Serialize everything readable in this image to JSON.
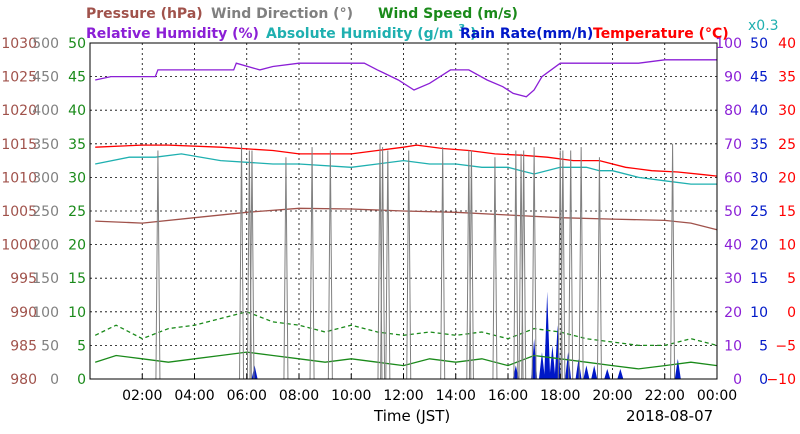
{
  "chart_data": {
    "type": "line",
    "date": "2018-08-07",
    "xlabel": "Time (JST)",
    "x_ticks": [
      "02:00",
      "04:00",
      "06:00",
      "08:00",
      "10:00",
      "12:00",
      "14:00",
      "16:00",
      "18:00",
      "20:00",
      "22:00",
      "00:00"
    ],
    "x_range_hours": [
      0,
      24
    ],
    "grid": true,
    "legend_row1": [
      {
        "name": "Pressure (hPa)",
        "color": "#a0524b"
      },
      {
        "name": "Wind Direction (°)",
        "color": "#808080"
      },
      {
        "name": "Wind Speed (m/s)",
        "color": "#1a8a1a"
      }
    ],
    "legend_row2": [
      {
        "name": "Relative Humidity (%)",
        "color": "#8b1fd6"
      },
      {
        "name_main": "Absolute Humidity (g/m",
        "name_sup": "3",
        "name_end": ")",
        "color": "#1fb0b0"
      },
      {
        "name": "Rain Rate(mm/h)",
        "color": "#0018c8"
      },
      {
        "name": "Temperature (°C)",
        "color": "#ff0000"
      }
    ],
    "multiplier_label": "x0.3",
    "axes": {
      "pressure": {
        "color": "#a0524b",
        "range": [
          980,
          1030
        ],
        "ticks": [
          "980",
          "985",
          "990",
          "995",
          "1000",
          "1005",
          "1010",
          "1015",
          "1020",
          "1025",
          "1030"
        ]
      },
      "wind_direction": {
        "color": "#808080",
        "range": [
          0,
          500
        ],
        "ticks": [
          "0",
          "50",
          "100",
          "150",
          "200",
          "250",
          "300",
          "350",
          "400",
          "450",
          "500"
        ]
      },
      "wind_speed": {
        "color": "#1a8a1a",
        "range": [
          0,
          50
        ],
        "ticks": [
          "0",
          "5",
          "10",
          "15",
          "20",
          "25",
          "30",
          "35",
          "40",
          "45",
          "50"
        ]
      },
      "relative_humidity": {
        "color": "#8b1fd6",
        "range": [
          0,
          100
        ],
        "ticks": [
          "0",
          "10",
          "20",
          "30",
          "40",
          "50",
          "60",
          "70",
          "80",
          "90",
          "100"
        ]
      },
      "rain_rate": {
        "color": "#0018c8",
        "range": [
          0,
          50
        ],
        "ticks": [
          "0",
          "5",
          "10",
          "15",
          "20",
          "25",
          "30",
          "35",
          "40",
          "45",
          "50"
        ]
      },
      "temperature": {
        "color": "#ff0000",
        "range": [
          -10,
          40
        ],
        "ticks": [
          "−10",
          "−5",
          "0",
          "5",
          "10",
          "15",
          "20",
          "25",
          "30",
          "35",
          "40"
        ]
      }
    },
    "series": [
      {
        "name": "Relative Humidity (%)",
        "axis": "relative_humidity",
        "color": "#8b1fd6",
        "x": [
          0.2,
          0.8,
          2.5,
          2.6,
          5.5,
          5.6,
          6.5,
          7.0,
          8.0,
          10.5,
          11.0,
          11.8,
          12.4,
          13.0,
          13.8,
          14.5,
          15.2,
          15.8,
          16.2,
          16.7,
          17.0,
          17.3,
          18.0,
          19.5,
          21.0,
          22.0,
          23.5,
          24.0
        ],
        "y": [
          89,
          90,
          90,
          92,
          92,
          94,
          92,
          93,
          94,
          94,
          92,
          89,
          86,
          88,
          92,
          92,
          89,
          87,
          85,
          84,
          86,
          90,
          94,
          94,
          94,
          95,
          95,
          95
        ]
      },
      {
        "name": "Temperature (°C)",
        "axis": "temperature",
        "color": "#ff0000",
        "x": [
          0.2,
          2,
          3,
          5,
          7,
          8,
          10,
          11,
          12,
          12.5,
          13.5,
          14.5,
          15.5,
          16.5,
          17.5,
          18.5,
          19.5,
          20.5,
          21.5,
          22.5,
          23.5,
          24.0
        ],
        "y": [
          24.5,
          24.8,
          24.8,
          24.5,
          24.0,
          23.5,
          23.5,
          24.0,
          24.5,
          24.8,
          24.3,
          24.0,
          23.5,
          23.3,
          23.0,
          22.5,
          22.5,
          21.5,
          21.0,
          20.8,
          20.4,
          20.2
        ]
      },
      {
        "name": "Absolute Humidity (g/m3) x0.3",
        "axis": "relative_humidity",
        "color": "#1fb0b0",
        "x": [
          0.2,
          1.5,
          2.5,
          3.5,
          5,
          7,
          8,
          10,
          11,
          12,
          13,
          14,
          15,
          16,
          16.5,
          17,
          18,
          19,
          19.5,
          20,
          21,
          22,
          23,
          24
        ],
        "y": [
          64,
          66,
          66,
          67,
          65,
          64,
          64,
          63,
          64,
          65,
          64,
          64,
          63,
          63,
          62,
          61,
          63,
          63,
          62,
          62,
          60,
          59,
          58,
          58
        ]
      },
      {
        "name": "Pressure (hPa)",
        "axis": "pressure",
        "color": "#a0524b",
        "x": [
          0.2,
          2,
          4,
          6,
          8,
          10,
          12,
          14,
          16,
          18,
          20,
          22,
          23,
          24
        ],
        "y": [
          1003.5,
          1003.2,
          1004.0,
          1004.8,
          1005.4,
          1005.3,
          1005.0,
          1004.8,
          1004.4,
          1004.0,
          1003.8,
          1003.6,
          1003.2,
          1002.2
        ]
      },
      {
        "name": "Wind Speed (m/s) mean",
        "axis": "wind_speed",
        "color": "#1a8a1a",
        "x": [
          0.2,
          1,
          2,
          3,
          4,
          5,
          6,
          7,
          8,
          9,
          10,
          11,
          12,
          13,
          14,
          15,
          16,
          17,
          18,
          19,
          20,
          21,
          22,
          23,
          24
        ],
        "y": [
          2.5,
          3.5,
          3,
          2.5,
          3,
          3.5,
          4,
          3.5,
          3,
          2.5,
          3,
          2.5,
          2,
          3,
          2.5,
          3,
          2,
          3.5,
          3,
          2.5,
          2,
          1.5,
          2,
          2.5,
          2
        ]
      },
      {
        "name": "Wind Speed (m/s) gust",
        "axis": "wind_speed",
        "color": "#1a8a1a",
        "x": [
          0.2,
          1,
          2,
          3,
          4,
          5,
          6,
          7,
          8,
          9,
          10,
          11,
          12,
          13,
          14,
          15,
          16,
          17,
          18,
          19,
          20,
          21,
          22,
          23,
          24
        ],
        "y": [
          6.5,
          8,
          6,
          7.5,
          8,
          9,
          10,
          8.5,
          8,
          7,
          8,
          7,
          6.5,
          7,
          6.5,
          7,
          6,
          7.5,
          7,
          6,
          5.5,
          5,
          5,
          6,
          5
        ]
      },
      {
        "name": "Wind Direction (°)",
        "axis": "wind_direction",
        "color": "#808080",
        "x": [
          2.6,
          5.8,
          6.1,
          6.2,
          7.5,
          8.5,
          9.2,
          11.1,
          11.2,
          11.4,
          12.2,
          13.5,
          14.5,
          14.6,
          15.5,
          16.3,
          16.5,
          16.6,
          17.0,
          18.0,
          18.1,
          18.4,
          18.8,
          19.5,
          22.3
        ],
        "y": [
          340,
          350,
          340,
          340,
          330,
          345,
          340,
          350,
          345,
          340,
          340,
          345,
          340,
          340,
          330,
          340,
          335,
          340,
          345,
          340,
          340,
          340,
          345,
          330,
          350
        ]
      },
      {
        "name": "Rain Rate(mm/h)",
        "axis": "rain_rate",
        "color": "#0018c8",
        "x": [
          6.3,
          16.3,
          17.0,
          17.3,
          17.5,
          17.7,
          17.9,
          18.3,
          18.7,
          19.0,
          19.3,
          19.8,
          20.3,
          22.5
        ],
        "y": [
          2,
          2,
          6,
          4,
          13,
          5,
          8,
          4,
          3,
          2,
          2,
          1.5,
          1.5,
          3
        ]
      }
    ]
  }
}
